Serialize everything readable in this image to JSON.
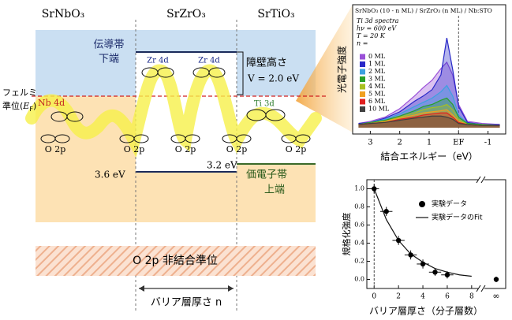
{
  "diagram": {
    "materials": [
      "SrNbO₃",
      "SrZrO₃",
      "SrTiO₃"
    ],
    "cb_label": [
      "伝導帯",
      "下端"
    ],
    "barrier": [
      "障壁高さ",
      "V = 2.0 eV"
    ],
    "fermi": [
      "フェルミ",
      "準位(",
      "E",
      "F",
      ")"
    ],
    "orbitals": {
      "nb": "Nb 4d",
      "zr": [
        "Zr 4d",
        "Zr 4d"
      ],
      "ti": "Ti 3d",
      "o": [
        "O 2p",
        "O 2p",
        "O 2p",
        "O 2p",
        "O 2p"
      ]
    },
    "energies": [
      "3.6 eV",
      "3.2 eV"
    ],
    "vb_label": [
      "価電子帯",
      "上端"
    ],
    "nonbonding": "O 2p 非結合準位",
    "thickness": "バリア層厚さ n"
  },
  "chart_data": [
    {
      "type": "line",
      "title": "SrNbO₃ (10 - n ML) / SrZrO₃ (n ML) / Nb:STO",
      "annotations": [
        "Ti 3d spectra",
        "hν = 600 eV",
        "T = 20 K",
        "n ="
      ],
      "x": [
        3.4,
        3.0,
        2.5,
        2.0,
        1.5,
        1.2,
        0.9,
        0.6,
        0.4,
        0.2,
        0.0,
        -0.3,
        -0.8,
        -1.4
      ],
      "series": [
        {
          "name": "0 ML",
          "color": "#9a50d8",
          "values": [
            0.04,
            0.06,
            0.1,
            0.18,
            0.3,
            0.38,
            0.45,
            0.56,
            0.62,
            0.5,
            0.22,
            0.06,
            0.04,
            0.03
          ]
        },
        {
          "name": "1 ML",
          "color": "#2828c8",
          "values": [
            0.04,
            0.05,
            0.09,
            0.15,
            0.25,
            0.3,
            0.36,
            0.5,
            0.85,
            0.55,
            0.2,
            0.05,
            0.03,
            0.03
          ]
        },
        {
          "name": "2 ML",
          "color": "#3ca0e0",
          "values": [
            0.03,
            0.05,
            0.08,
            0.13,
            0.2,
            0.24,
            0.28,
            0.34,
            0.4,
            0.3,
            0.12,
            0.04,
            0.03,
            0.02
          ]
        },
        {
          "name": "3 ML",
          "color": "#28a028",
          "values": [
            0.03,
            0.05,
            0.07,
            0.11,
            0.16,
            0.2,
            0.22,
            0.26,
            0.28,
            0.22,
            0.1,
            0.04,
            0.03,
            0.02
          ]
        },
        {
          "name": "4 ML",
          "color": "#a8c020",
          "values": [
            0.03,
            0.04,
            0.06,
            0.1,
            0.14,
            0.17,
            0.19,
            0.2,
            0.22,
            0.17,
            0.08,
            0.03,
            0.02,
            0.02
          ]
        },
        {
          "name": "5 ML",
          "color": "#f0a020",
          "values": [
            0.03,
            0.04,
            0.06,
            0.09,
            0.12,
            0.14,
            0.15,
            0.16,
            0.17,
            0.12,
            0.06,
            0.03,
            0.02,
            0.02
          ]
        },
        {
          "name": "6 ML",
          "color": "#e02020",
          "values": [
            0.03,
            0.04,
            0.05,
            0.08,
            0.1,
            0.12,
            0.13,
            0.14,
            0.14,
            0.1,
            0.05,
            0.03,
            0.02,
            0.02
          ]
        },
        {
          "name": "10 ML",
          "color": "#404040",
          "values": [
            0.03,
            0.04,
            0.05,
            0.07,
            0.09,
            0.1,
            0.11,
            0.11,
            0.1,
            0.08,
            0.04,
            0.03,
            0.02,
            0.02
          ]
        }
      ],
      "xlim": [
        3.6,
        -1.6
      ],
      "xticks": [
        3,
        2,
        1,
        {
          "value": 0,
          "label": "EF"
        },
        -1
      ],
      "ylim": [
        0,
        1
      ],
      "x_label": "結合エネルギー（eV）",
      "y_label": "光電子強度"
    },
    {
      "type": "scatter",
      "series_name": "実験データ",
      "color": "#000000",
      "x": [
        0,
        1,
        2,
        3,
        4,
        5,
        6
      ],
      "values": [
        1.0,
        0.75,
        0.43,
        0.27,
        0.17,
        0.08,
        0.05
      ],
      "x_errors": [
        0.4,
        0.5,
        0.5,
        0.5,
        0.5,
        0.5,
        0.5
      ],
      "errors": [
        0.05,
        0.05,
        0.05,
        0.05,
        0.05,
        0.04,
        0.04
      ],
      "inf_label": "∞",
      "inf_value": 0.0,
      "inf_error": 0.03,
      "fit": {
        "name": "実験データのFit",
        "x": [
          0,
          1,
          2,
          3,
          4,
          5,
          6,
          7,
          8
        ],
        "values": [
          1.0,
          0.66,
          0.43,
          0.28,
          0.19,
          0.12,
          0.08,
          0.05,
          0.035
        ]
      },
      "xlim": [
        -0.6,
        8.4
      ],
      "xticks": [
        0,
        2,
        4,
        6,
        8
      ],
      "ylim": [
        -0.1,
        1.1
      ],
      "yticks": [
        {
          "value": 0,
          "label": "0.0"
        },
        {
          "value": 0.2,
          "label": "0.2"
        },
        {
          "value": 0.4,
          "label": "0.4"
        },
        {
          "value": 0.6,
          "label": "0.6"
        },
        {
          "value": 0.8,
          "label": "0.8"
        },
        {
          "value": 1,
          "label": "1.0"
        }
      ],
      "x_label": "バリア層厚さ（分子層数）",
      "y_label": "規格化強度"
    }
  ]
}
